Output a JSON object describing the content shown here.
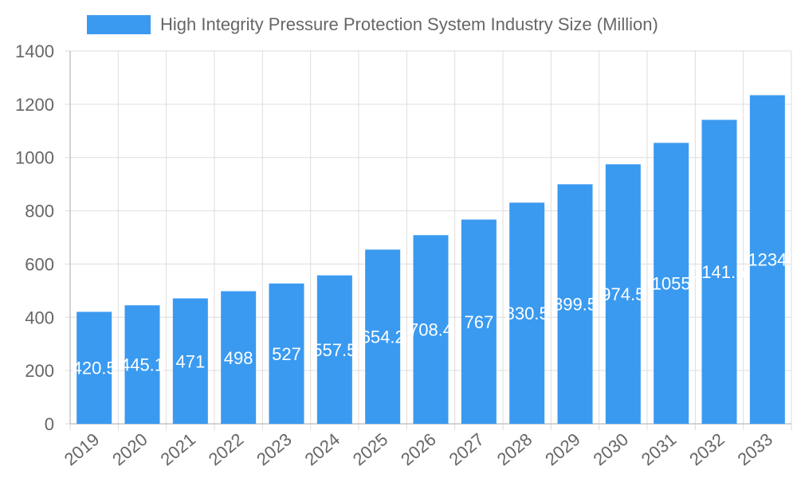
{
  "chart_data": {
    "type": "bar",
    "title": "",
    "legend": {
      "position": "top",
      "entries": [
        "High Integrity Pressure Protection System Industry Size (Million)"
      ]
    },
    "categories": [
      "2019",
      "2020",
      "2021",
      "2022",
      "2023",
      "2024",
      "2025",
      "2026",
      "2027",
      "2028",
      "2029",
      "2030",
      "2031",
      "2032",
      "2033"
    ],
    "series": [
      {
        "name": "High Integrity Pressure Protection System Industry Size (Million)",
        "values": [
          420.5,
          445.1,
          471,
          498,
          527,
          557.5,
          654.2,
          708.4,
          767,
          830.5,
          899.5,
          974.5,
          1055,
          1141.5,
          1234
        ],
        "color": "#3a9af0"
      }
    ],
    "data_labels": [
      "420.5",
      "445.1",
      "471",
      "498",
      "527",
      "557.5",
      "654.2",
      "708.4",
      "767",
      "830.5",
      "899.5",
      "974.5",
      "1055",
      "1141.5",
      "1234"
    ],
    "xlabel": "",
    "ylabel": "",
    "ylim": [
      0,
      1400
    ],
    "yticks": [
      "0",
      "200",
      "400",
      "600",
      "800",
      "1000",
      "1200",
      "1400"
    ],
    "grid": true
  }
}
